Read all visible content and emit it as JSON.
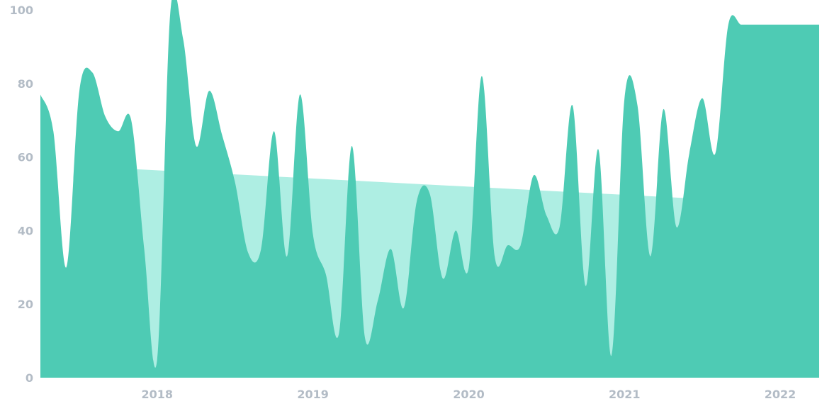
{
  "chart_data": {
    "type": "area",
    "title": "",
    "xlabel": "",
    "ylabel": "",
    "ylim": [
      0,
      100
    ],
    "xlim": [
      "2017-04",
      "2022-04"
    ],
    "grid": false,
    "legend": "none",
    "y_ticks": [
      "0",
      "20",
      "40",
      "60",
      "80",
      "100"
    ],
    "x_ticks": [
      {
        "date": "2018-01",
        "label": "2018"
      },
      {
        "date": "2019-01",
        "label": "2019"
      },
      {
        "date": "2020-01",
        "label": "2020"
      },
      {
        "date": "2021-01",
        "label": "2021"
      },
      {
        "date": "2022-01",
        "label": "2022"
      }
    ],
    "series": [
      {
        "role": "value",
        "color": "#4ecbb4",
        "x": [
          "2017-04",
          "2017-05",
          "2017-06",
          "2017-07",
          "2017-08",
          "2017-09",
          "2017-10",
          "2017-11",
          "2017-12",
          "2018-01",
          "2018-02",
          "2018-03",
          "2018-04",
          "2018-05",
          "2018-06",
          "2018-07",
          "2018-08",
          "2018-09",
          "2018-10",
          "2018-11",
          "2018-12",
          "2019-01",
          "2019-02",
          "2019-03",
          "2019-04",
          "2019-05",
          "2019-06",
          "2019-07",
          "2019-08",
          "2019-09",
          "2019-10",
          "2019-11",
          "2019-12",
          "2020-01",
          "2020-02",
          "2020-03",
          "2020-04",
          "2020-05",
          "2020-06",
          "2020-07",
          "2020-08",
          "2020-09",
          "2020-10",
          "2020-11",
          "2020-12",
          "2021-01",
          "2021-02",
          "2021-03",
          "2021-04",
          "2021-05",
          "2021-06",
          "2021-07",
          "2021-08",
          "2021-09",
          "2021-10",
          "2021-11",
          "2021-12",
          "2022-01",
          "2022-02",
          "2022-03",
          "2022-04"
        ],
        "values": [
          77,
          67,
          30,
          78,
          83,
          71,
          67,
          70,
          35,
          5,
          99,
          92,
          63,
          78,
          66,
          53,
          34,
          35,
          67,
          33,
          77,
          39,
          28,
          12,
          63,
          11,
          21,
          35,
          19,
          48,
          50,
          27,
          40,
          30,
          82,
          33,
          36,
          36,
          55,
          44,
          41,
          74,
          25,
          62,
          6,
          76,
          74,
          33,
          73,
          41,
          61,
          76,
          61,
          96,
          96,
          96,
          96,
          96,
          96,
          96,
          96
        ]
      },
      {
        "role": "trend",
        "color": "#aeeee3",
        "x": [
          "2017-07",
          "2022-01"
        ],
        "values": [
          57.5,
          47.5
        ]
      }
    ]
  }
}
